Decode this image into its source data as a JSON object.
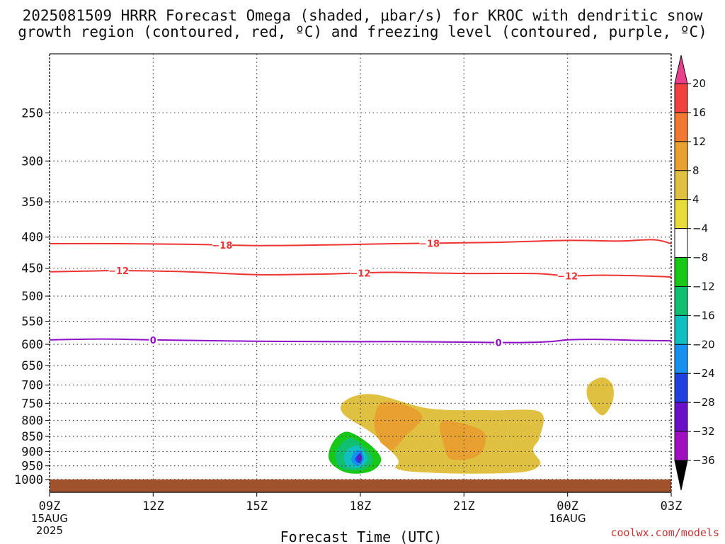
{
  "title_line1": "2025081509 HRRR Forecast Omega (shaded, μbar/s) for KROC with dendritic snow",
  "title_line2": "growth region (contoured, red, ºC) and freezing level (contoured, purple, ºC)",
  "credit": "coolwx.com/models",
  "chart_data": {
    "type": "heatmap",
    "title": "2025081509 HRRR Forecast Omega (shaded, μbar/s) for KROC with dendritic snow growth region (contoured, red, ºC) and freezing level (contoured, purple, ºC)",
    "xlabel": "Forecast Time (UTC)",
    "ylabel": "",
    "xlim": [
      0,
      18
    ],
    "ylim_pressure_hPa": [
      1050,
      200
    ],
    "y_scale": "log-pressure",
    "grid": true,
    "x_ticks": [
      {
        "hour": 0,
        "label": "09Z",
        "sub1": "15AUG",
        "sub2": "2025"
      },
      {
        "hour": 3,
        "label": "12Z"
      },
      {
        "hour": 6,
        "label": "15Z"
      },
      {
        "hour": 9,
        "label": "18Z"
      },
      {
        "hour": 12,
        "label": "21Z"
      },
      {
        "hour": 15,
        "label": "00Z",
        "sub1": "16AUG"
      },
      {
        "hour": 18,
        "label": "03Z"
      }
    ],
    "y_ticks": [
      250,
      300,
      350,
      400,
      450,
      500,
      550,
      600,
      650,
      700,
      750,
      800,
      850,
      900,
      950,
      1000
    ],
    "ground": {
      "from_hPa": 1000,
      "color": "#a0522d"
    },
    "colorbar": {
      "labels": [
        "20",
        "16",
        "12",
        "8",
        "4",
        "−4",
        "−8",
        "−12",
        "−16",
        "−20",
        "−24",
        "−28",
        "−32",
        "−36"
      ],
      "boundaries": [
        20,
        16,
        12,
        8,
        4,
        -4,
        -8,
        -12,
        -16,
        -20,
        -24,
        -28,
        -32,
        -36
      ],
      "colors": [
        "#e8408a",
        "#f04040",
        "#f07830",
        "#e8a030",
        "#e0c040",
        "#e8dc3c",
        "#ffffff",
        "#18c818",
        "#10c070",
        "#10c0c0",
        "#1890f0",
        "#2040e0",
        "#6a10c8",
        "#a010c0",
        "#a8a8a8",
        "#000000"
      ]
    },
    "contours": [
      {
        "value": -18,
        "label": "−18",
        "color": "#ee3333",
        "series": "dendritic",
        "points": [
          [
            0,
            410
          ],
          [
            2,
            410
          ],
          [
            4,
            411
          ],
          [
            6,
            413
          ],
          [
            8,
            412
          ],
          [
            10,
            410
          ],
          [
            11.5,
            409
          ],
          [
            13,
            408
          ],
          [
            15,
            405
          ],
          [
            16.5,
            406
          ],
          [
            17.5,
            404
          ],
          [
            18,
            410
          ]
        ],
        "label_hours": [
          5,
          11
        ]
      },
      {
        "value": -12,
        "label": "−12",
        "color": "#ee3333",
        "series": "dendritic",
        "points": [
          [
            0,
            456
          ],
          [
            1,
            455
          ],
          [
            2,
            454
          ],
          [
            4,
            456
          ],
          [
            6,
            461
          ],
          [
            8,
            460
          ],
          [
            9,
            458
          ],
          [
            10,
            457
          ],
          [
            12,
            459
          ],
          [
            14,
            459
          ],
          [
            15,
            463
          ],
          [
            16,
            462
          ],
          [
            17,
            463
          ],
          [
            18,
            465
          ]
        ],
        "label_hours": [
          2,
          9,
          15
        ]
      },
      {
        "value": 0,
        "label": "0",
        "color": "#9010c8",
        "series": "freezing",
        "points": [
          [
            0,
            590
          ],
          [
            1.5,
            588
          ],
          [
            3,
            590
          ],
          [
            4,
            591
          ],
          [
            6,
            593
          ],
          [
            8,
            594
          ],
          [
            10,
            594
          ],
          [
            12,
            595
          ],
          [
            13.5,
            596
          ],
          [
            14.5,
            594
          ],
          [
            15,
            590
          ],
          [
            16,
            589
          ],
          [
            17,
            591
          ],
          [
            18,
            592
          ]
        ],
        "label_hours": [
          3,
          13
        ]
      }
    ],
    "shaded_regions": [
      {
        "value": -6,
        "points": [
          [
            1.8,
            580
          ],
          [
            2.0,
            620
          ],
          [
            1.8,
            665
          ],
          [
            1.6,
            620
          ]
        ]
      },
      {
        "value": -6,
        "points": [
          [
            1.8,
            815
          ],
          [
            2.3,
            850
          ],
          [
            2.0,
            900
          ],
          [
            1.6,
            900
          ],
          [
            1.4,
            850
          ]
        ]
      },
      {
        "value": -6,
        "points": [
          [
            10.3,
            660
          ],
          [
            12.5,
            628
          ],
          [
            13.2,
            672
          ],
          [
            12.5,
            700
          ],
          [
            11.0,
            670
          ],
          [
            10.0,
            665
          ]
        ]
      },
      {
        "value": -6,
        "points": [
          [
            15.0,
            790
          ],
          [
            15.5,
            850
          ],
          [
            14.8,
            925
          ],
          [
            14.0,
            905
          ],
          [
            13.3,
            885
          ]
        ]
      },
      {
        "value": -6,
        "points": [
          [
            17.9,
            330
          ],
          [
            18.0,
            365
          ],
          [
            17.85,
            345
          ]
        ]
      },
      {
        "value": 6,
        "points": [
          [
            16.0,
            680
          ],
          [
            16.3,
            700
          ],
          [
            16.3,
            745
          ],
          [
            16.0,
            785
          ],
          [
            15.6,
            740
          ],
          [
            15.6,
            700
          ]
        ]
      },
      {
        "value": 6,
        "points": [
          [
            8.6,
            740
          ],
          [
            9.4,
            725
          ],
          [
            11.0,
            765
          ],
          [
            12.8,
            770
          ],
          [
            14.2,
            775
          ],
          [
            14.2,
            850
          ],
          [
            14.0,
            895
          ],
          [
            14.2,
            945
          ],
          [
            13.5,
            975
          ],
          [
            11.0,
            975
          ],
          [
            9.9,
            950
          ],
          [
            9.5,
            855
          ],
          [
            8.5,
            780
          ]
        ]
      },
      {
        "value": 10,
        "points": [
          [
            9.6,
            750
          ],
          [
            10.3,
            755
          ],
          [
            10.8,
            790
          ],
          [
            10.3,
            850
          ],
          [
            9.9,
            895
          ],
          [
            9.6,
            870
          ],
          [
            9.4,
            810
          ]
        ]
      },
      {
        "value": 10,
        "points": [
          [
            11.5,
            800
          ],
          [
            12.5,
            830
          ],
          [
            12.6,
            880
          ],
          [
            12.3,
            920
          ],
          [
            11.6,
            925
          ],
          [
            11.4,
            870
          ],
          [
            11.3,
            820
          ]
        ]
      },
      {
        "value": -6,
        "points": [
          [
            8.6,
            815
          ],
          [
            9.1,
            835
          ],
          [
            9.8,
            890
          ],
          [
            10.1,
            940
          ],
          [
            9.6,
            980
          ],
          [
            8.7,
            985
          ],
          [
            8.1,
            955
          ],
          [
            7.9,
            895
          ],
          [
            8.2,
            845
          ]
        ]
      },
      {
        "value": -10,
        "points": [
          [
            8.6,
            835
          ],
          [
            9.2,
            870
          ],
          [
            9.6,
            925
          ],
          [
            9.3,
            970
          ],
          [
            8.6,
            975
          ],
          [
            8.1,
            930
          ],
          [
            8.2,
            870
          ]
        ]
      },
      {
        "value": -14,
        "points": [
          [
            8.7,
            855
          ],
          [
            9.2,
            895
          ],
          [
            9.35,
            935
          ],
          [
            9.0,
            965
          ],
          [
            8.4,
            955
          ],
          [
            8.3,
            900
          ]
        ]
      },
      {
        "value": -18,
        "points": [
          [
            8.9,
            880
          ],
          [
            9.2,
            920
          ],
          [
            9.0,
            955
          ],
          [
            8.6,
            950
          ],
          [
            8.55,
            905
          ]
        ]
      },
      {
        "value": -22,
        "points": [
          [
            9.0,
            895
          ],
          [
            9.1,
            925
          ],
          [
            8.95,
            950
          ],
          [
            8.75,
            935
          ],
          [
            8.8,
            905
          ]
        ]
      },
      {
        "value": -26,
        "points": [
          [
            9.0,
            905
          ],
          [
            9.05,
            928
          ],
          [
            8.95,
            940
          ],
          [
            8.85,
            925
          ]
        ]
      },
      {
        "value": -30,
        "points": [
          [
            9.0,
            910
          ],
          [
            9.03,
            924
          ],
          [
            8.97,
            932
          ],
          [
            8.92,
            922
          ]
        ]
      }
    ]
  }
}
